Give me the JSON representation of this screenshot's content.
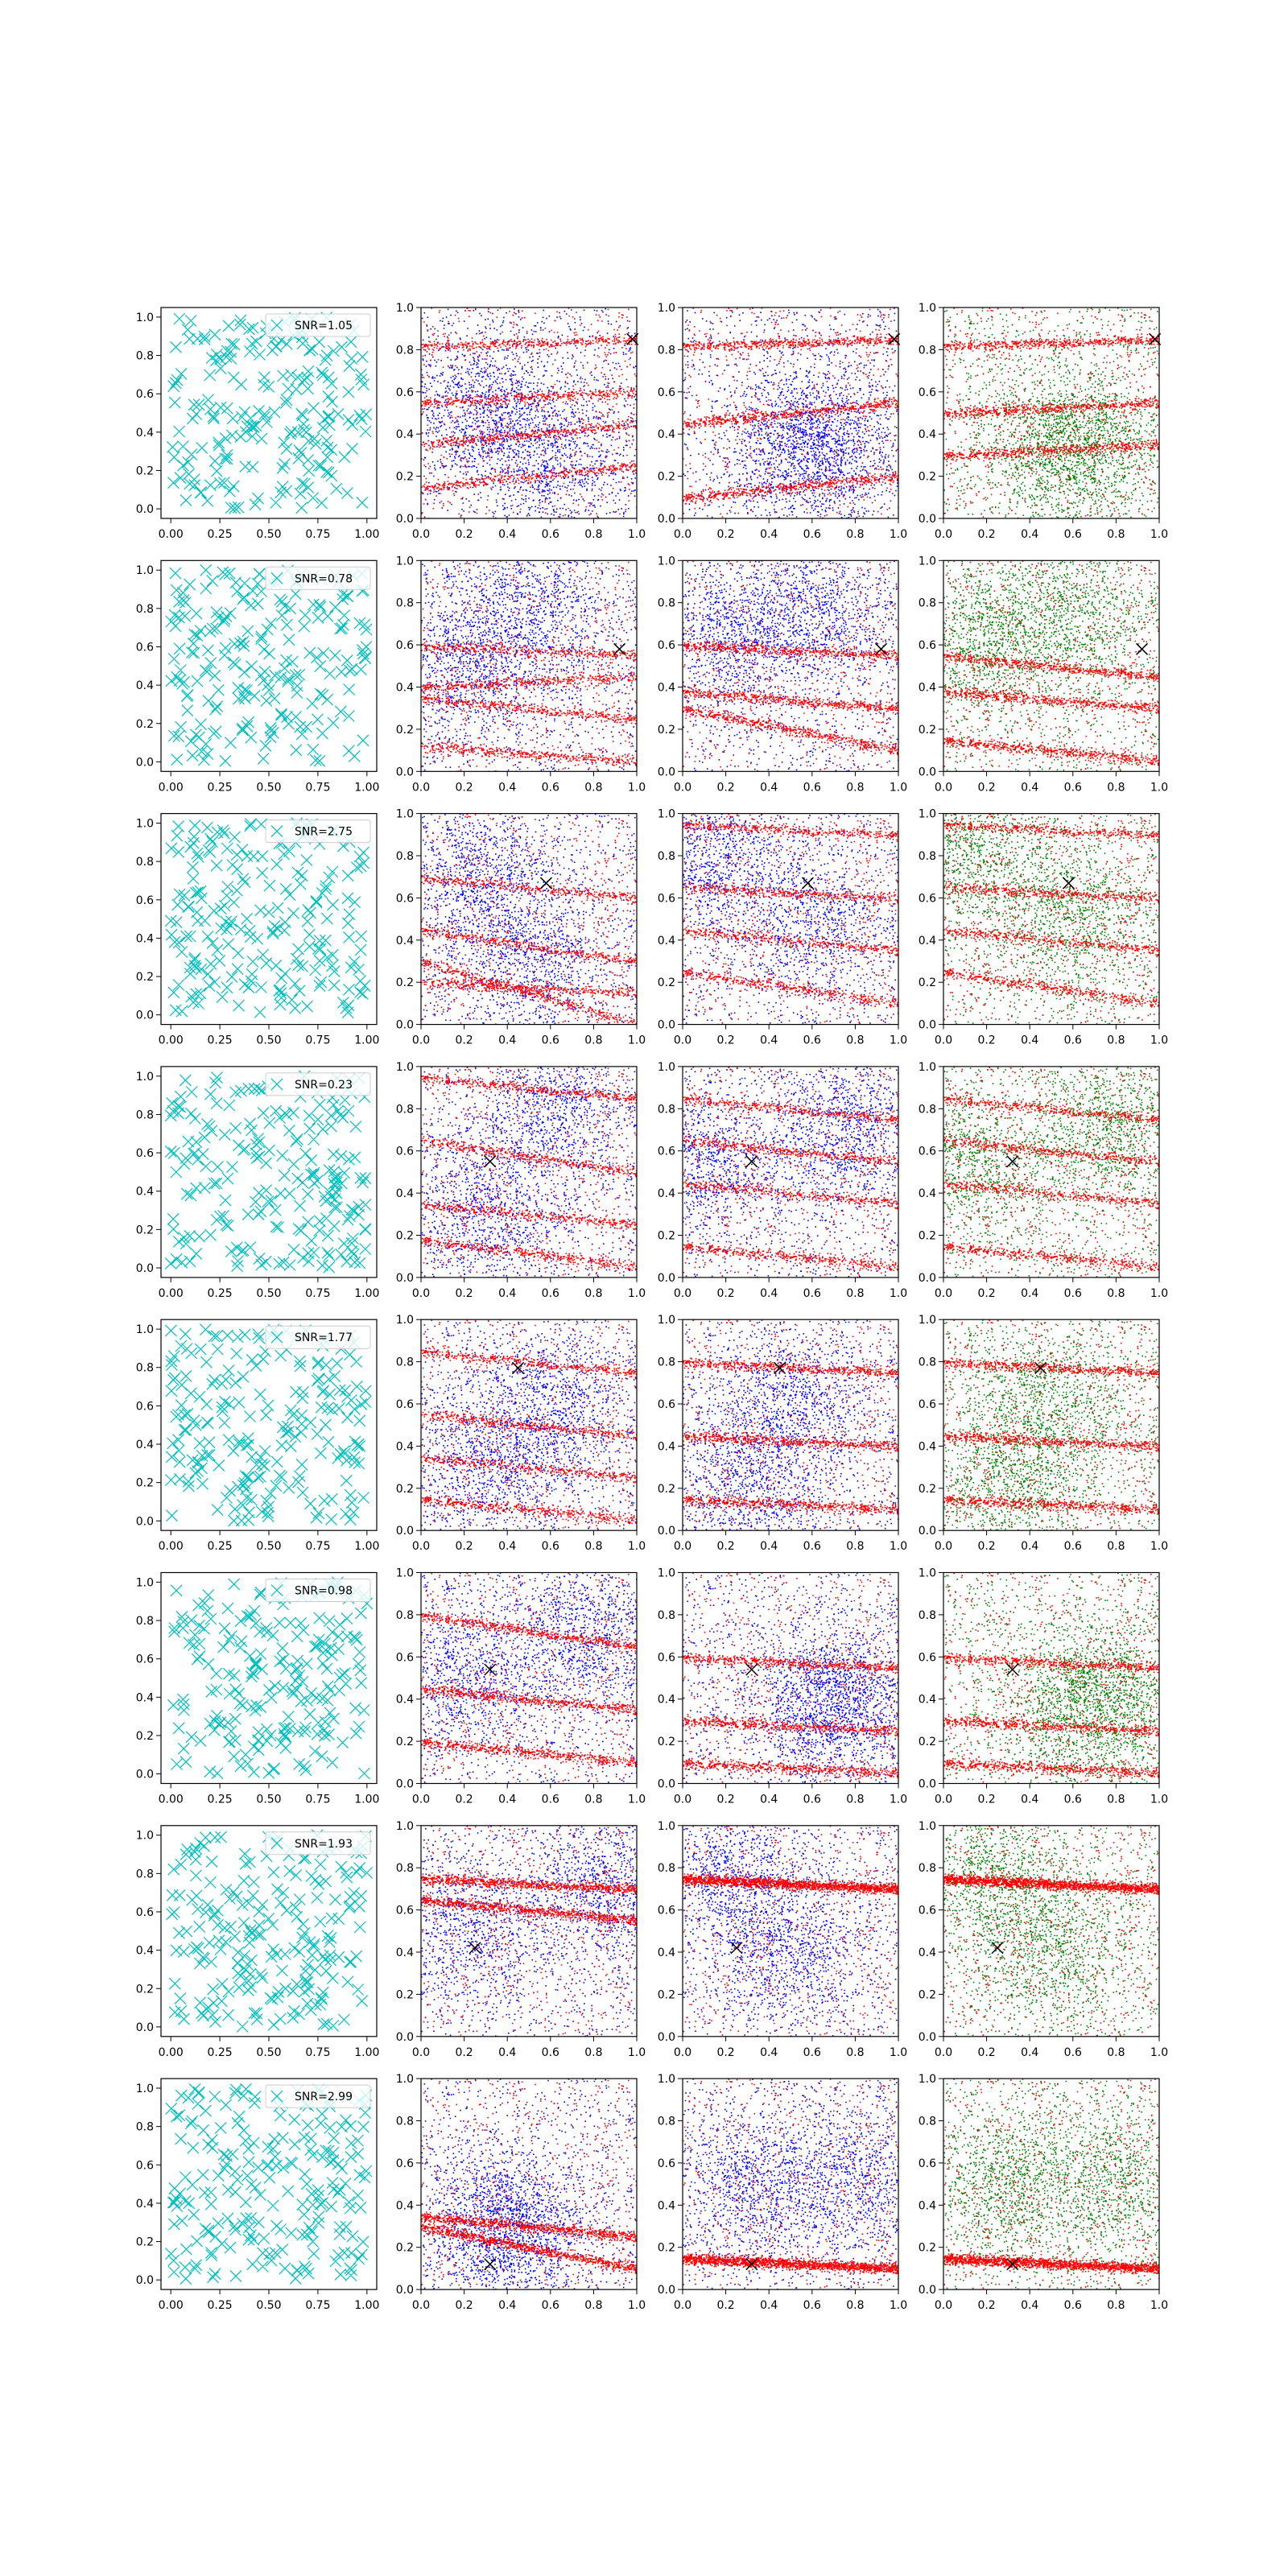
{
  "figure": {
    "background": "#ffffff",
    "colors": {
      "cyan": "#00bfbf",
      "blue": "#0000ff",
      "red": "#ff0000",
      "green": "#008000",
      "marker": "#000000"
    }
  },
  "chart_data": {
    "type": "scatter",
    "rows": 8,
    "cols": 4,
    "grid": false,
    "x_ticks_col1": [
      "0.00",
      "0.25",
      "0.50",
      "0.75",
      "1.00"
    ],
    "y_ticks_col1": [
      "0.0",
      "0.2",
      "0.4",
      "0.6",
      "0.8",
      "1.0"
    ],
    "x_ticks_other": [
      "0.0",
      "0.2",
      "0.4",
      "0.6",
      "0.8",
      "1.0"
    ],
    "y_ticks_other": [
      "0.0",
      "0.2",
      "0.4",
      "0.6",
      "0.8",
      "1.0"
    ],
    "xlim": [
      0,
      1
    ],
    "ylim": [
      0,
      1
    ],
    "legend_position": "top-right",
    "column_series": [
      {
        "color": "cyan",
        "marker": "x"
      },
      {
        "colors": [
          "blue",
          "red"
        ],
        "marker": "point"
      },
      {
        "colors": [
          "blue",
          "red"
        ],
        "marker": "point"
      },
      {
        "colors": [
          "green",
          "red"
        ],
        "marker": "point"
      }
    ],
    "panels": [
      {
        "label": "SNR=1.05",
        "cross": [
          0.98,
          0.85
        ],
        "blue_centers": [
          [
            0.3,
            0.5
          ],
          [
            0.6,
            0.3
          ]
        ],
        "red_stripes": [
          [
            0.82,
            0.85
          ],
          [
            0.35,
            0.45
          ],
          [
            0.15,
            0.25
          ],
          [
            0.55,
            0.6
          ]
        ],
        "col3_blue": [
          [
            0.6,
            0.35
          ]
        ],
        "col3_stripes": [
          [
            0.82,
            0.85
          ],
          [
            0.45,
            0.55
          ],
          [
            0.1,
            0.2
          ]
        ],
        "col4_stripes": [
          [
            0.82,
            0.85
          ],
          [
            0.5,
            0.55
          ],
          [
            0.3,
            0.35
          ]
        ]
      },
      {
        "label": "SNR=0.78",
        "cross": [
          0.92,
          0.58
        ],
        "blue_centers": [
          [
            0.5,
            0.75
          ],
          [
            0.2,
            0.5
          ]
        ],
        "red_stripes": [
          [
            0.35,
            0.25
          ],
          [
            0.12,
            0.05
          ],
          [
            0.6,
            0.55
          ],
          [
            0.4,
            0.45
          ]
        ],
        "col3_blue": [
          [
            0.2,
            0.65
          ],
          [
            0.6,
            0.75
          ]
        ],
        "col3_stripes": [
          [
            0.38,
            0.3
          ],
          [
            0.6,
            0.55
          ],
          [
            0.3,
            0.1
          ]
        ],
        "col4_stripes": [
          [
            0.55,
            0.45
          ],
          [
            0.38,
            0.3
          ],
          [
            0.15,
            0.05
          ]
        ]
      },
      {
        "label": "SNR=2.75",
        "cross": [
          0.58,
          0.67
        ],
        "blue_centers": [
          [
            0.3,
            0.7
          ],
          [
            0.5,
            0.3
          ]
        ],
        "red_stripes": [
          [
            0.45,
            0.3
          ],
          [
            0.2,
            0.15
          ],
          [
            0.7,
            0.6
          ],
          [
            0.3,
            0.0
          ]
        ],
        "col3_blue": [
          [
            0.1,
            0.8
          ],
          [
            0.6,
            0.5
          ]
        ],
        "col3_stripes": [
          [
            0.95,
            0.9
          ],
          [
            0.65,
            0.6
          ],
          [
            0.45,
            0.35
          ],
          [
            0.25,
            0.1
          ]
        ],
        "col4_stripes": [
          [
            0.95,
            0.9
          ],
          [
            0.65,
            0.6
          ],
          [
            0.45,
            0.35
          ],
          [
            0.25,
            0.1
          ]
        ]
      },
      {
        "label": "SNR=0.23",
        "cross": [
          0.32,
          0.55
        ],
        "blue_centers": [
          [
            0.6,
            0.8
          ],
          [
            0.3,
            0.3
          ]
        ],
        "red_stripes": [
          [
            0.95,
            0.85
          ],
          [
            0.65,
            0.5
          ],
          [
            0.35,
            0.25
          ],
          [
            0.18,
            0.05
          ]
        ],
        "col3_blue": [
          [
            0.75,
            0.7
          ],
          [
            0.1,
            0.55
          ]
        ],
        "col3_stripes": [
          [
            0.85,
            0.75
          ],
          [
            0.65,
            0.55
          ],
          [
            0.45,
            0.35
          ],
          [
            0.15,
            0.05
          ]
        ],
        "col4_stripes": [
          [
            0.85,
            0.75
          ],
          [
            0.65,
            0.55
          ],
          [
            0.45,
            0.35
          ],
          [
            0.15,
            0.05
          ]
        ]
      },
      {
        "label": "SNR=1.77",
        "cross": [
          0.45,
          0.77
        ],
        "blue_centers": [
          [
            0.6,
            0.6
          ],
          [
            0.3,
            0.3
          ]
        ],
        "red_stripes": [
          [
            0.85,
            0.75
          ],
          [
            0.55,
            0.45
          ],
          [
            0.35,
            0.25
          ],
          [
            0.15,
            0.05
          ]
        ],
        "col3_blue": [
          [
            0.5,
            0.6
          ],
          [
            0.3,
            0.2
          ]
        ],
        "col3_stripes": [
          [
            0.8,
            0.75
          ],
          [
            0.45,
            0.4
          ],
          [
            0.15,
            0.1
          ]
        ],
        "col4_stripes": [
          [
            0.8,
            0.75
          ],
          [
            0.45,
            0.4
          ],
          [
            0.15,
            0.1
          ]
        ]
      },
      {
        "label": "SNR=0.98",
        "cross": [
          0.32,
          0.54
        ],
        "blue_centers": [
          [
            0.75,
            0.7
          ],
          [
            0.2,
            0.5
          ]
        ],
        "red_stripes": [
          [
            0.8,
            0.65
          ],
          [
            0.45,
            0.35
          ],
          [
            0.2,
            0.1
          ]
        ],
        "col3_blue": [
          [
            0.7,
            0.4
          ]
        ],
        "col3_stripes": [
          [
            0.6,
            0.55
          ],
          [
            0.3,
            0.25
          ],
          [
            0.1,
            0.05
          ]
        ],
        "col4_stripes": [
          [
            0.6,
            0.55
          ],
          [
            0.3,
            0.25
          ],
          [
            0.1,
            0.05
          ]
        ]
      },
      {
        "label": "SNR=1.93",
        "cross": [
          0.25,
          0.42
        ],
        "blue_centers": [
          [
            0.85,
            0.7
          ],
          [
            0.2,
            0.5
          ]
        ],
        "red_stripes": [
          [
            0.75,
            0.7
          ],
          [
            0.65,
            0.55
          ]
        ],
        "col3_blue": [
          [
            0.2,
            0.75
          ],
          [
            0.5,
            0.4
          ]
        ],
        "col3_stripes": [
          [
            0.75,
            0.7
          ]
        ],
        "col4_stripes": [
          [
            0.75,
            0.7
          ]
        ]
      },
      {
        "label": "SNR=2.99",
        "cross": [
          0.32,
          0.12
        ],
        "blue_centers": [
          [
            0.4,
            0.3
          ]
        ],
        "red_stripes": [
          [
            0.3,
            0.1
          ],
          [
            0.35,
            0.25
          ]
        ],
        "col3_blue": [
          [
            0.3,
            0.5
          ],
          [
            0.8,
            0.5
          ]
        ],
        "col3_stripes": [
          [
            0.15,
            0.1
          ]
        ],
        "col4_stripes": [
          [
            0.15,
            0.1
          ]
        ]
      }
    ]
  }
}
